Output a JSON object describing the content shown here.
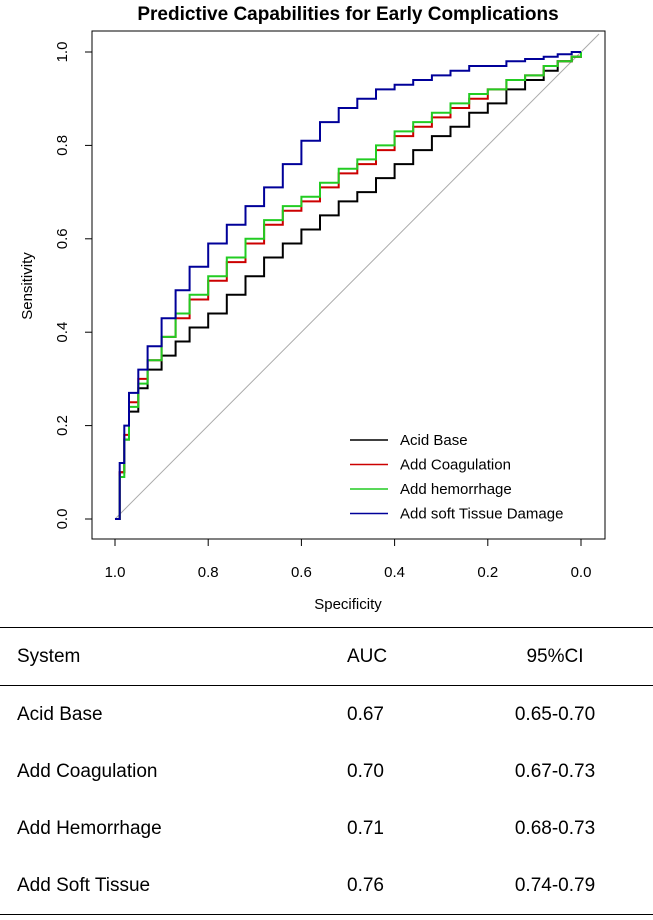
{
  "chart_data": {
    "type": "line",
    "title": "Predictive Capabilities for Early Complications",
    "xlabel": "Specificity",
    "ylabel": "Sensitivity",
    "xlim": [
      1.0,
      0.0
    ],
    "ylim": [
      0.0,
      1.0
    ],
    "xticks": [
      "1.0",
      "0.8",
      "0.6",
      "0.4",
      "0.2",
      "0.0"
    ],
    "yticks": [
      "0.0",
      "0.2",
      "0.4",
      "0.6",
      "0.8",
      "1.0"
    ],
    "legend_position": "bottom-right",
    "reference_line": true,
    "series": [
      {
        "name": "Acid Base",
        "color": "#000000",
        "specificity": [
          1.0,
          0.99,
          0.98,
          0.97,
          0.95,
          0.93,
          0.9,
          0.87,
          0.84,
          0.8,
          0.76,
          0.72,
          0.68,
          0.64,
          0.6,
          0.56,
          0.52,
          0.48,
          0.44,
          0.4,
          0.36,
          0.32,
          0.28,
          0.24,
          0.2,
          0.16,
          0.12,
          0.08,
          0.05,
          0.02,
          0.0
        ],
        "sensitivity": [
          0.0,
          0.1,
          0.17,
          0.23,
          0.28,
          0.32,
          0.35,
          0.38,
          0.41,
          0.44,
          0.48,
          0.52,
          0.56,
          0.59,
          0.62,
          0.65,
          0.68,
          0.7,
          0.73,
          0.76,
          0.79,
          0.82,
          0.84,
          0.87,
          0.89,
          0.92,
          0.94,
          0.96,
          0.98,
          0.99,
          1.0
        ]
      },
      {
        "name": "Add Coagulation",
        "color": "#cc0000",
        "specificity": [
          1.0,
          0.99,
          0.98,
          0.97,
          0.95,
          0.93,
          0.9,
          0.87,
          0.84,
          0.8,
          0.76,
          0.72,
          0.68,
          0.64,
          0.6,
          0.56,
          0.52,
          0.48,
          0.44,
          0.4,
          0.36,
          0.32,
          0.28,
          0.24,
          0.2,
          0.16,
          0.12,
          0.08,
          0.05,
          0.02,
          0.0
        ],
        "sensitivity": [
          0.0,
          0.1,
          0.18,
          0.25,
          0.3,
          0.34,
          0.39,
          0.43,
          0.47,
          0.51,
          0.55,
          0.59,
          0.63,
          0.66,
          0.68,
          0.71,
          0.74,
          0.76,
          0.79,
          0.82,
          0.84,
          0.86,
          0.88,
          0.9,
          0.92,
          0.94,
          0.95,
          0.97,
          0.98,
          0.99,
          1.0
        ]
      },
      {
        "name": "Add hemorrhage",
        "color": "#22cc22",
        "specificity": [
          1.0,
          0.99,
          0.98,
          0.97,
          0.95,
          0.93,
          0.9,
          0.87,
          0.84,
          0.8,
          0.76,
          0.72,
          0.68,
          0.64,
          0.6,
          0.56,
          0.52,
          0.48,
          0.44,
          0.4,
          0.36,
          0.32,
          0.28,
          0.24,
          0.2,
          0.16,
          0.12,
          0.08,
          0.05,
          0.02,
          0.0
        ],
        "sensitivity": [
          0.0,
          0.09,
          0.17,
          0.24,
          0.29,
          0.34,
          0.39,
          0.44,
          0.48,
          0.52,
          0.56,
          0.6,
          0.64,
          0.67,
          0.69,
          0.72,
          0.75,
          0.77,
          0.8,
          0.83,
          0.85,
          0.87,
          0.89,
          0.91,
          0.92,
          0.94,
          0.95,
          0.97,
          0.98,
          0.99,
          1.0
        ]
      },
      {
        "name": "Add soft Tissue Damage",
        "color": "#000099",
        "specificity": [
          1.0,
          0.99,
          0.98,
          0.97,
          0.95,
          0.93,
          0.9,
          0.87,
          0.84,
          0.8,
          0.76,
          0.72,
          0.68,
          0.64,
          0.6,
          0.56,
          0.52,
          0.48,
          0.44,
          0.4,
          0.36,
          0.32,
          0.28,
          0.24,
          0.2,
          0.16,
          0.12,
          0.08,
          0.05,
          0.02,
          0.0
        ],
        "sensitivity": [
          0.0,
          0.12,
          0.2,
          0.27,
          0.32,
          0.37,
          0.43,
          0.49,
          0.54,
          0.59,
          0.63,
          0.67,
          0.71,
          0.76,
          0.81,
          0.85,
          0.88,
          0.9,
          0.92,
          0.93,
          0.94,
          0.95,
          0.96,
          0.97,
          0.97,
          0.98,
          0.985,
          0.99,
          0.995,
          1.0,
          1.0
        ]
      }
    ]
  },
  "table": {
    "headers": [
      "System",
      "AUC",
      "95%CI"
    ],
    "rows": [
      {
        "system": "Acid Base",
        "auc": "0.67",
        "ci": "0.65-0.70"
      },
      {
        "system": "Add Coagulation",
        "auc": "0.70",
        "ci": "0.67-0.73"
      },
      {
        "system": "Add Hemorrhage",
        "auc": "0.71",
        "ci": "0.68-0.73"
      },
      {
        "system": "Add Soft Tissue",
        "auc": "0.76",
        "ci": "0.74-0.79"
      }
    ]
  }
}
